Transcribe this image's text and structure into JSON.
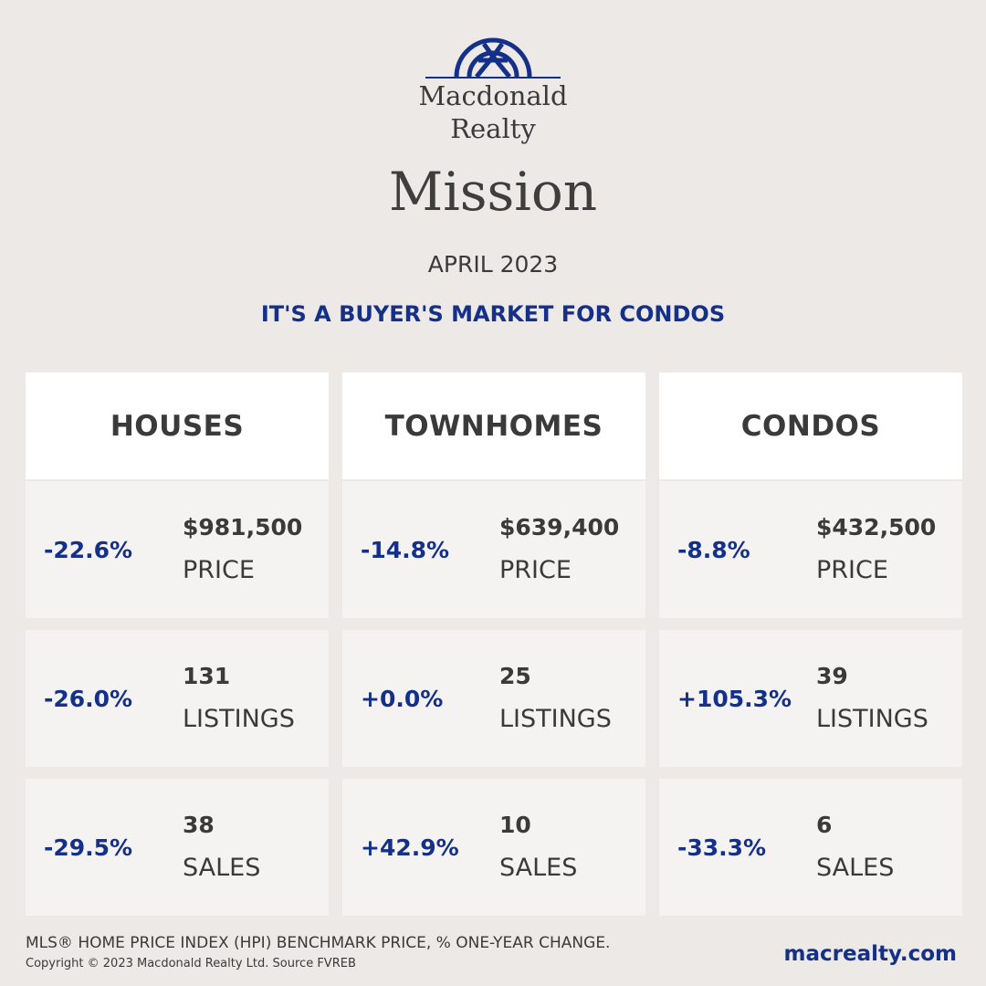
{
  "logo": {
    "line1": "Macdonald",
    "line2": "Realty"
  },
  "title": "Mission",
  "date": "APRIL 2023",
  "headline": "IT'S A BUYER'S MARKET FOR CONDOS",
  "columns": [
    {
      "title": "HOUSES",
      "rows": [
        {
          "change": "-22.6%",
          "value": "$981,500",
          "label": "PRICE"
        },
        {
          "change": "-26.0%",
          "value": "131",
          "label": "LISTINGS"
        },
        {
          "change": "-29.5%",
          "value": "38",
          "label": "SALES"
        }
      ]
    },
    {
      "title": "TOWNHOMES",
      "rows": [
        {
          "change": "-14.8%",
          "value": "$639,400",
          "label": "PRICE"
        },
        {
          "change": "+0.0%",
          "value": "25",
          "label": "LISTINGS"
        },
        {
          "change": "+42.9%",
          "value": "10",
          "label": "SALES"
        }
      ]
    },
    {
      "title": "CONDOS",
      "rows": [
        {
          "change": "-8.8%",
          "value": "$432,500",
          "label": "PRICE"
        },
        {
          "change": "+105.3%",
          "value": "39",
          "label": "LISTINGS"
        },
        {
          "change": "-33.3%",
          "value": "6",
          "label": "SALES"
        }
      ]
    }
  ],
  "footer": {
    "note": "MLS® HOME PRICE INDEX (HPI) BENCHMARK PRICE, % ONE-YEAR CHANGE.",
    "copyright": "Copyright © 2023 Macdonald Realty Ltd. Source FVREB",
    "website": "macrealty.com"
  }
}
